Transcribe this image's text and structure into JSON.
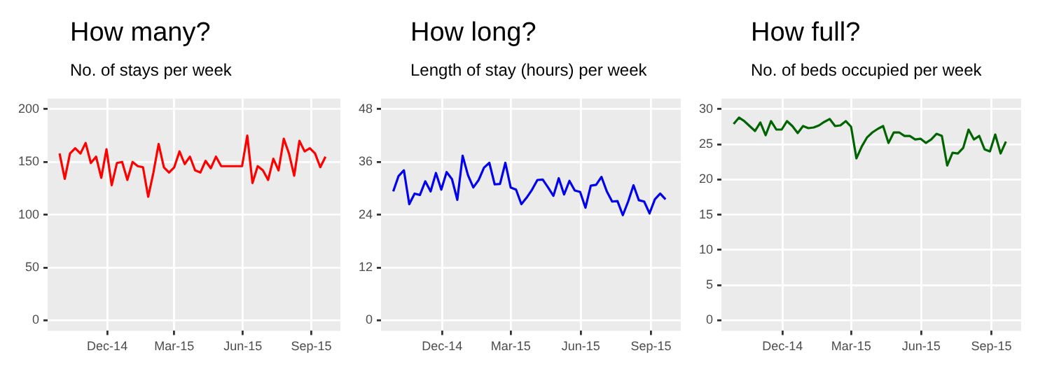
{
  "chart_data": [
    {
      "type": "line",
      "title": "How many?",
      "subtitle": "No. of stays per week",
      "x": [
        "2014-09-28",
        "2014-10-05",
        "2014-10-12",
        "2014-10-19",
        "2014-10-26",
        "2014-11-02",
        "2014-11-09",
        "2014-11-16",
        "2014-11-23",
        "2014-11-30",
        "2014-12-07",
        "2014-12-14",
        "2014-12-21",
        "2014-12-28",
        "2015-01-04",
        "2015-01-11",
        "2015-01-18",
        "2015-01-25",
        "2015-02-01",
        "2015-02-08",
        "2015-02-15",
        "2015-02-22",
        "2015-03-01",
        "2015-03-08",
        "2015-03-15",
        "2015-03-22",
        "2015-03-29",
        "2015-04-05",
        "2015-04-12",
        "2015-04-19",
        "2015-04-26",
        "2015-05-03",
        "2015-05-10",
        "2015-05-17",
        "2015-05-24",
        "2015-05-31",
        "2015-06-07",
        "2015-06-14",
        "2015-06-21",
        "2015-06-28",
        "2015-07-05",
        "2015-07-12",
        "2015-07-19",
        "2015-07-26",
        "2015-08-02",
        "2015-08-09",
        "2015-08-16",
        "2015-08-23",
        "2015-08-30",
        "2015-09-06",
        "2015-09-13",
        "2015-09-20"
      ],
      "values": [
        158,
        134,
        158,
        163,
        158,
        168,
        149,
        155,
        135,
        162,
        128,
        149,
        150,
        133,
        150,
        146,
        145,
        117,
        140,
        167,
        145,
        140,
        145,
        160,
        148,
        155,
        142,
        140,
        151,
        144,
        155,
        146,
        146,
        146,
        146,
        146,
        175,
        130,
        146,
        142,
        133,
        153,
        142,
        172,
        158,
        137,
        170,
        160,
        163,
        158,
        145,
        155
      ],
      "color": "#ff0000",
      "xlim": [
        "2014-09-12",
        "2015-10-10"
      ],
      "xticks": [
        {
          "value": "2014-12-01",
          "label": "Dec-14"
        },
        {
          "value": "2015-03-01",
          "label": "Mar-15"
        },
        {
          "value": "2015-06-01",
          "label": "Jun-15"
        },
        {
          "value": "2015-09-01",
          "label": "Sep-15"
        }
      ],
      "ylim": [
        -10,
        210
      ],
      "yticks": [
        0,
        50,
        100,
        150,
        200
      ],
      "grid": true
    },
    {
      "type": "line",
      "title": "How long?",
      "subtitle": "Length of stay (hours) per week",
      "x": [
        "2014-09-28",
        "2014-10-05",
        "2014-10-12",
        "2014-10-19",
        "2014-10-26",
        "2014-11-02",
        "2014-11-09",
        "2014-11-16",
        "2014-11-23",
        "2014-11-30",
        "2014-12-07",
        "2014-12-14",
        "2014-12-21",
        "2014-12-28",
        "2015-01-04",
        "2015-01-11",
        "2015-01-18",
        "2015-01-25",
        "2015-02-01",
        "2015-02-08",
        "2015-02-15",
        "2015-02-22",
        "2015-03-01",
        "2015-03-08",
        "2015-03-15",
        "2015-03-22",
        "2015-03-29",
        "2015-04-05",
        "2015-04-12",
        "2015-04-19",
        "2015-04-26",
        "2015-05-03",
        "2015-05-10",
        "2015-05-17",
        "2015-05-24",
        "2015-05-31",
        "2015-06-07",
        "2015-06-14",
        "2015-06-21",
        "2015-06-28",
        "2015-07-05",
        "2015-07-12",
        "2015-07-19",
        "2015-07-26",
        "2015-08-02",
        "2015-08-09",
        "2015-08-16",
        "2015-08-23",
        "2015-08-30",
        "2015-09-06",
        "2015-09-13",
        "2015-09-20"
      ],
      "values": [
        29.3,
        32.8,
        34.1,
        26.4,
        28.8,
        28.5,
        31.6,
        29.3,
        33.5,
        29.7,
        33.7,
        32.1,
        27.4,
        37.4,
        33,
        30.2,
        31.9,
        34.7,
        35.8,
        30.9,
        31,
        35.8,
        30.2,
        29.7,
        26.4,
        27.9,
        29.7,
        31.9,
        32,
        30.2,
        28.3,
        32.3,
        28.6,
        31.7,
        29.5,
        29.2,
        25.6,
        30.6,
        30.8,
        32.6,
        29.3,
        27,
        27.1,
        23.9,
        27,
        30.7,
        27.3,
        27,
        24.3,
        27.5,
        28.8,
        27.5
      ],
      "color": "#0000ee",
      "xlim": [
        "2014-09-12",
        "2015-10-10"
      ],
      "xticks": [
        {
          "value": "2014-12-01",
          "label": "Dec-14"
        },
        {
          "value": "2015-03-01",
          "label": "Mar-15"
        },
        {
          "value": "2015-06-01",
          "label": "Jun-15"
        },
        {
          "value": "2015-09-01",
          "label": "Sep-15"
        }
      ],
      "ylim": [
        -2.4,
        50.4
      ],
      "yticks": [
        0,
        12,
        24,
        36,
        48
      ],
      "grid": true
    },
    {
      "type": "line",
      "title": "How full?",
      "subtitle": "No. of beds occupied per week",
      "x": [
        "2014-09-28",
        "2014-10-05",
        "2014-10-12",
        "2014-10-19",
        "2014-10-26",
        "2014-11-02",
        "2014-11-09",
        "2014-11-16",
        "2014-11-23",
        "2014-11-30",
        "2014-12-07",
        "2014-12-14",
        "2014-12-21",
        "2014-12-28",
        "2015-01-04",
        "2015-01-11",
        "2015-01-18",
        "2015-01-25",
        "2015-02-01",
        "2015-02-08",
        "2015-02-15",
        "2015-02-22",
        "2015-03-01",
        "2015-03-08",
        "2015-03-15",
        "2015-03-22",
        "2015-03-29",
        "2015-04-05",
        "2015-04-12",
        "2015-04-19",
        "2015-04-26",
        "2015-05-03",
        "2015-05-10",
        "2015-05-17",
        "2015-05-24",
        "2015-05-31",
        "2015-06-07",
        "2015-06-14",
        "2015-06-21",
        "2015-06-28",
        "2015-07-05",
        "2015-07-12",
        "2015-07-19",
        "2015-07-26",
        "2015-08-02",
        "2015-08-09",
        "2015-08-16",
        "2015-08-23",
        "2015-08-30",
        "2015-09-06",
        "2015-09-13",
        "2015-09-20"
      ],
      "values": [
        27.9,
        28.8,
        28.3,
        27.6,
        26.9,
        28.1,
        26.3,
        28.3,
        27.1,
        27.1,
        28.3,
        27.6,
        26.6,
        27.6,
        27.3,
        27.4,
        27.7,
        28.2,
        28.6,
        27.6,
        27.7,
        28.3,
        27.5,
        23,
        24.7,
        26,
        26.7,
        27.2,
        27.6,
        25.2,
        26.7,
        26.7,
        26.2,
        26.2,
        25.7,
        25.8,
        25.2,
        25.7,
        26.5,
        26.2,
        22,
        23.8,
        23.7,
        24.5,
        27.1,
        25.7,
        26.2,
        24.3,
        24,
        26.4,
        23.7,
        25.4
      ],
      "color": "#006400",
      "xlim": [
        "2014-09-12",
        "2015-10-10"
      ],
      "xticks": [
        {
          "value": "2014-12-01",
          "label": "Dec-14"
        },
        {
          "value": "2015-03-01",
          "label": "Mar-15"
        },
        {
          "value": "2015-06-01",
          "label": "Jun-15"
        },
        {
          "value": "2015-09-01",
          "label": "Sep-15"
        }
      ],
      "ylim": [
        -1.5,
        31.5
      ],
      "yticks": [
        0,
        5,
        10,
        15,
        20,
        25,
        30
      ],
      "grid": true
    }
  ]
}
